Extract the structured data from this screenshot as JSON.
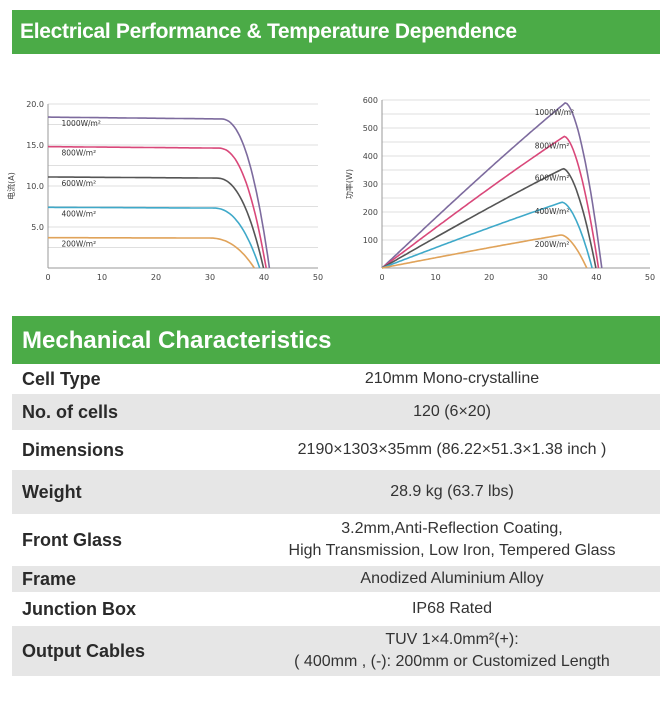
{
  "sections": {
    "electrical_title": "Electrical Performance & Temperature Dependence",
    "mechanical_title": "Mechanical Characteristics"
  },
  "chart_data": [
    {
      "type": "line",
      "ylabel": "电流(A)",
      "xlabel": "",
      "x_ticks": [
        "0",
        "10",
        "20",
        "30",
        "40",
        "50"
      ],
      "y_ticks": [
        "5.0",
        "10.0",
        "15.0",
        "20.0"
      ],
      "xlim": [
        0,
        50
      ],
      "ylim": [
        0,
        20
      ],
      "grid": true,
      "series": [
        {
          "name": "1000W/m²",
          "color": "#7d6b9e",
          "isc": 18.4,
          "voc": 41.0
        },
        {
          "name": "800W/m²",
          "color": "#d9487a",
          "isc": 14.8,
          "voc": 40.4
        },
        {
          "name": "600W/m²",
          "color": "#555555",
          "isc": 11.1,
          "voc": 39.9
        },
        {
          "name": "400W/m²",
          "color": "#3fa9c9",
          "isc": 7.4,
          "voc": 39.2
        },
        {
          "name": "200W/m²",
          "color": "#e0a35a",
          "isc": 3.7,
          "voc": 38.2
        }
      ]
    },
    {
      "type": "line",
      "ylabel": "功率(W)",
      "xlabel": "",
      "x_ticks": [
        "0",
        "10",
        "20",
        "30",
        "40",
        "50"
      ],
      "y_ticks": [
        "100",
        "200",
        "300",
        "400",
        "500",
        "600"
      ],
      "xlim": [
        0,
        50
      ],
      "ylim": [
        0,
        600
      ],
      "grid": true,
      "series": [
        {
          "name": "1000W/m²",
          "color": "#7d6b9e",
          "pmax": 590,
          "vmp": 34.2,
          "voc": 41.0
        },
        {
          "name": "800W/m²",
          "color": "#d9487a",
          "pmax": 470,
          "vmp": 34.0,
          "voc": 40.4
        },
        {
          "name": "600W/m²",
          "color": "#555555",
          "pmax": 355,
          "vmp": 33.8,
          "voc": 39.9
        },
        {
          "name": "400W/m²",
          "color": "#3fa9c9",
          "pmax": 235,
          "vmp": 33.6,
          "voc": 39.2
        },
        {
          "name": "200W/m²",
          "color": "#e0a35a",
          "pmax": 118,
          "vmp": 33.4,
          "voc": 38.2
        }
      ]
    }
  ],
  "mechanical": {
    "rows": [
      {
        "label": "Cell  Type",
        "value_lines": [
          "210mm Mono-crystalline"
        ]
      },
      {
        "label": "No. of cells",
        "value_lines": [
          "120 (6×20)"
        ]
      },
      {
        "label": "Dimensions",
        "value_lines": [
          "2190×1303×35mm (86.22×51.3×1.38 inch )"
        ]
      },
      {
        "label": "Weight",
        "value_lines": [
          "28.9 kg (63.7 lbs)"
        ]
      },
      {
        "label": "Front Glass",
        "value_lines": [
          "3.2mm,Anti-Reflection Coating,",
          "High Transmission, Low Iron, Tempered Glass"
        ]
      },
      {
        "label": "Frame",
        "value_lines": [
          "Anodized Aluminium Alloy"
        ]
      },
      {
        "label": "Junction Box",
        "value_lines": [
          "IP68 Rated"
        ]
      },
      {
        "label": "Output Cables",
        "value_lines": [
          "TUV  1×4.0mm²(+):",
          "(     400mm , (-): 200mm or Customized Length"
        ]
      }
    ]
  }
}
